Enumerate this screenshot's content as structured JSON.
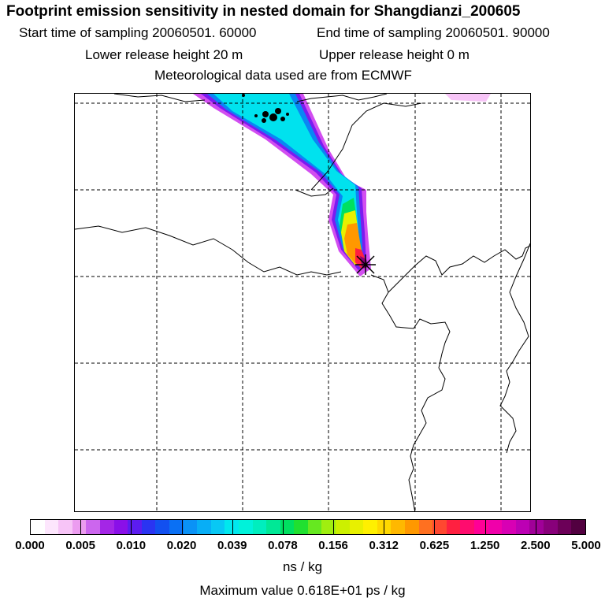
{
  "title": "Footprint emission sensitivity in nested domain for Shangdianzi_200605",
  "start_label": "Start time of sampling 20060501. 60000",
  "end_label": "End time of sampling 20060501. 90000",
  "lower_height_label": "Lower release height   20 m",
  "upper_height_label": "Upper release height    0 m",
  "met_label": "Meteorological data used are from ECMWF",
  "colorbar": {
    "ticks": [
      "0.000",
      "0.005",
      "0.010",
      "0.020",
      "0.039",
      "0.078",
      "0.156",
      "0.312",
      "0.625",
      "1.250",
      "2.500",
      "5.000"
    ],
    "colors": [
      "#ffffff",
      "#fde6fd",
      "#f7c4f7",
      "#ec9cf0",
      "#cc66ee",
      "#a426e6",
      "#8a10e8",
      "#5c1cf0",
      "#2a34f2",
      "#1250f0",
      "#0a70f4",
      "#0a92f6",
      "#08aef6",
      "#08c8f4",
      "#00e8ee",
      "#00f2da",
      "#00eebe",
      "#00e896",
      "#00e060",
      "#20e030",
      "#66e820",
      "#a0ee10",
      "#ccf000",
      "#e8f000",
      "#fff000",
      "#ffd800",
      "#ffb800",
      "#ff9800",
      "#ff7020",
      "#ff4830",
      "#ff2040",
      "#ff0c6e",
      "#ff0096",
      "#f000aa",
      "#d800b4",
      "#bc00b4",
      "#a00098",
      "#88007a",
      "#6c0058",
      "#520040"
    ],
    "unit": "ns / kg",
    "max_text": "Maximum value  0.618E+01 ps / kg"
  },
  "map": {
    "receptor": "Shangdianzi"
  }
}
